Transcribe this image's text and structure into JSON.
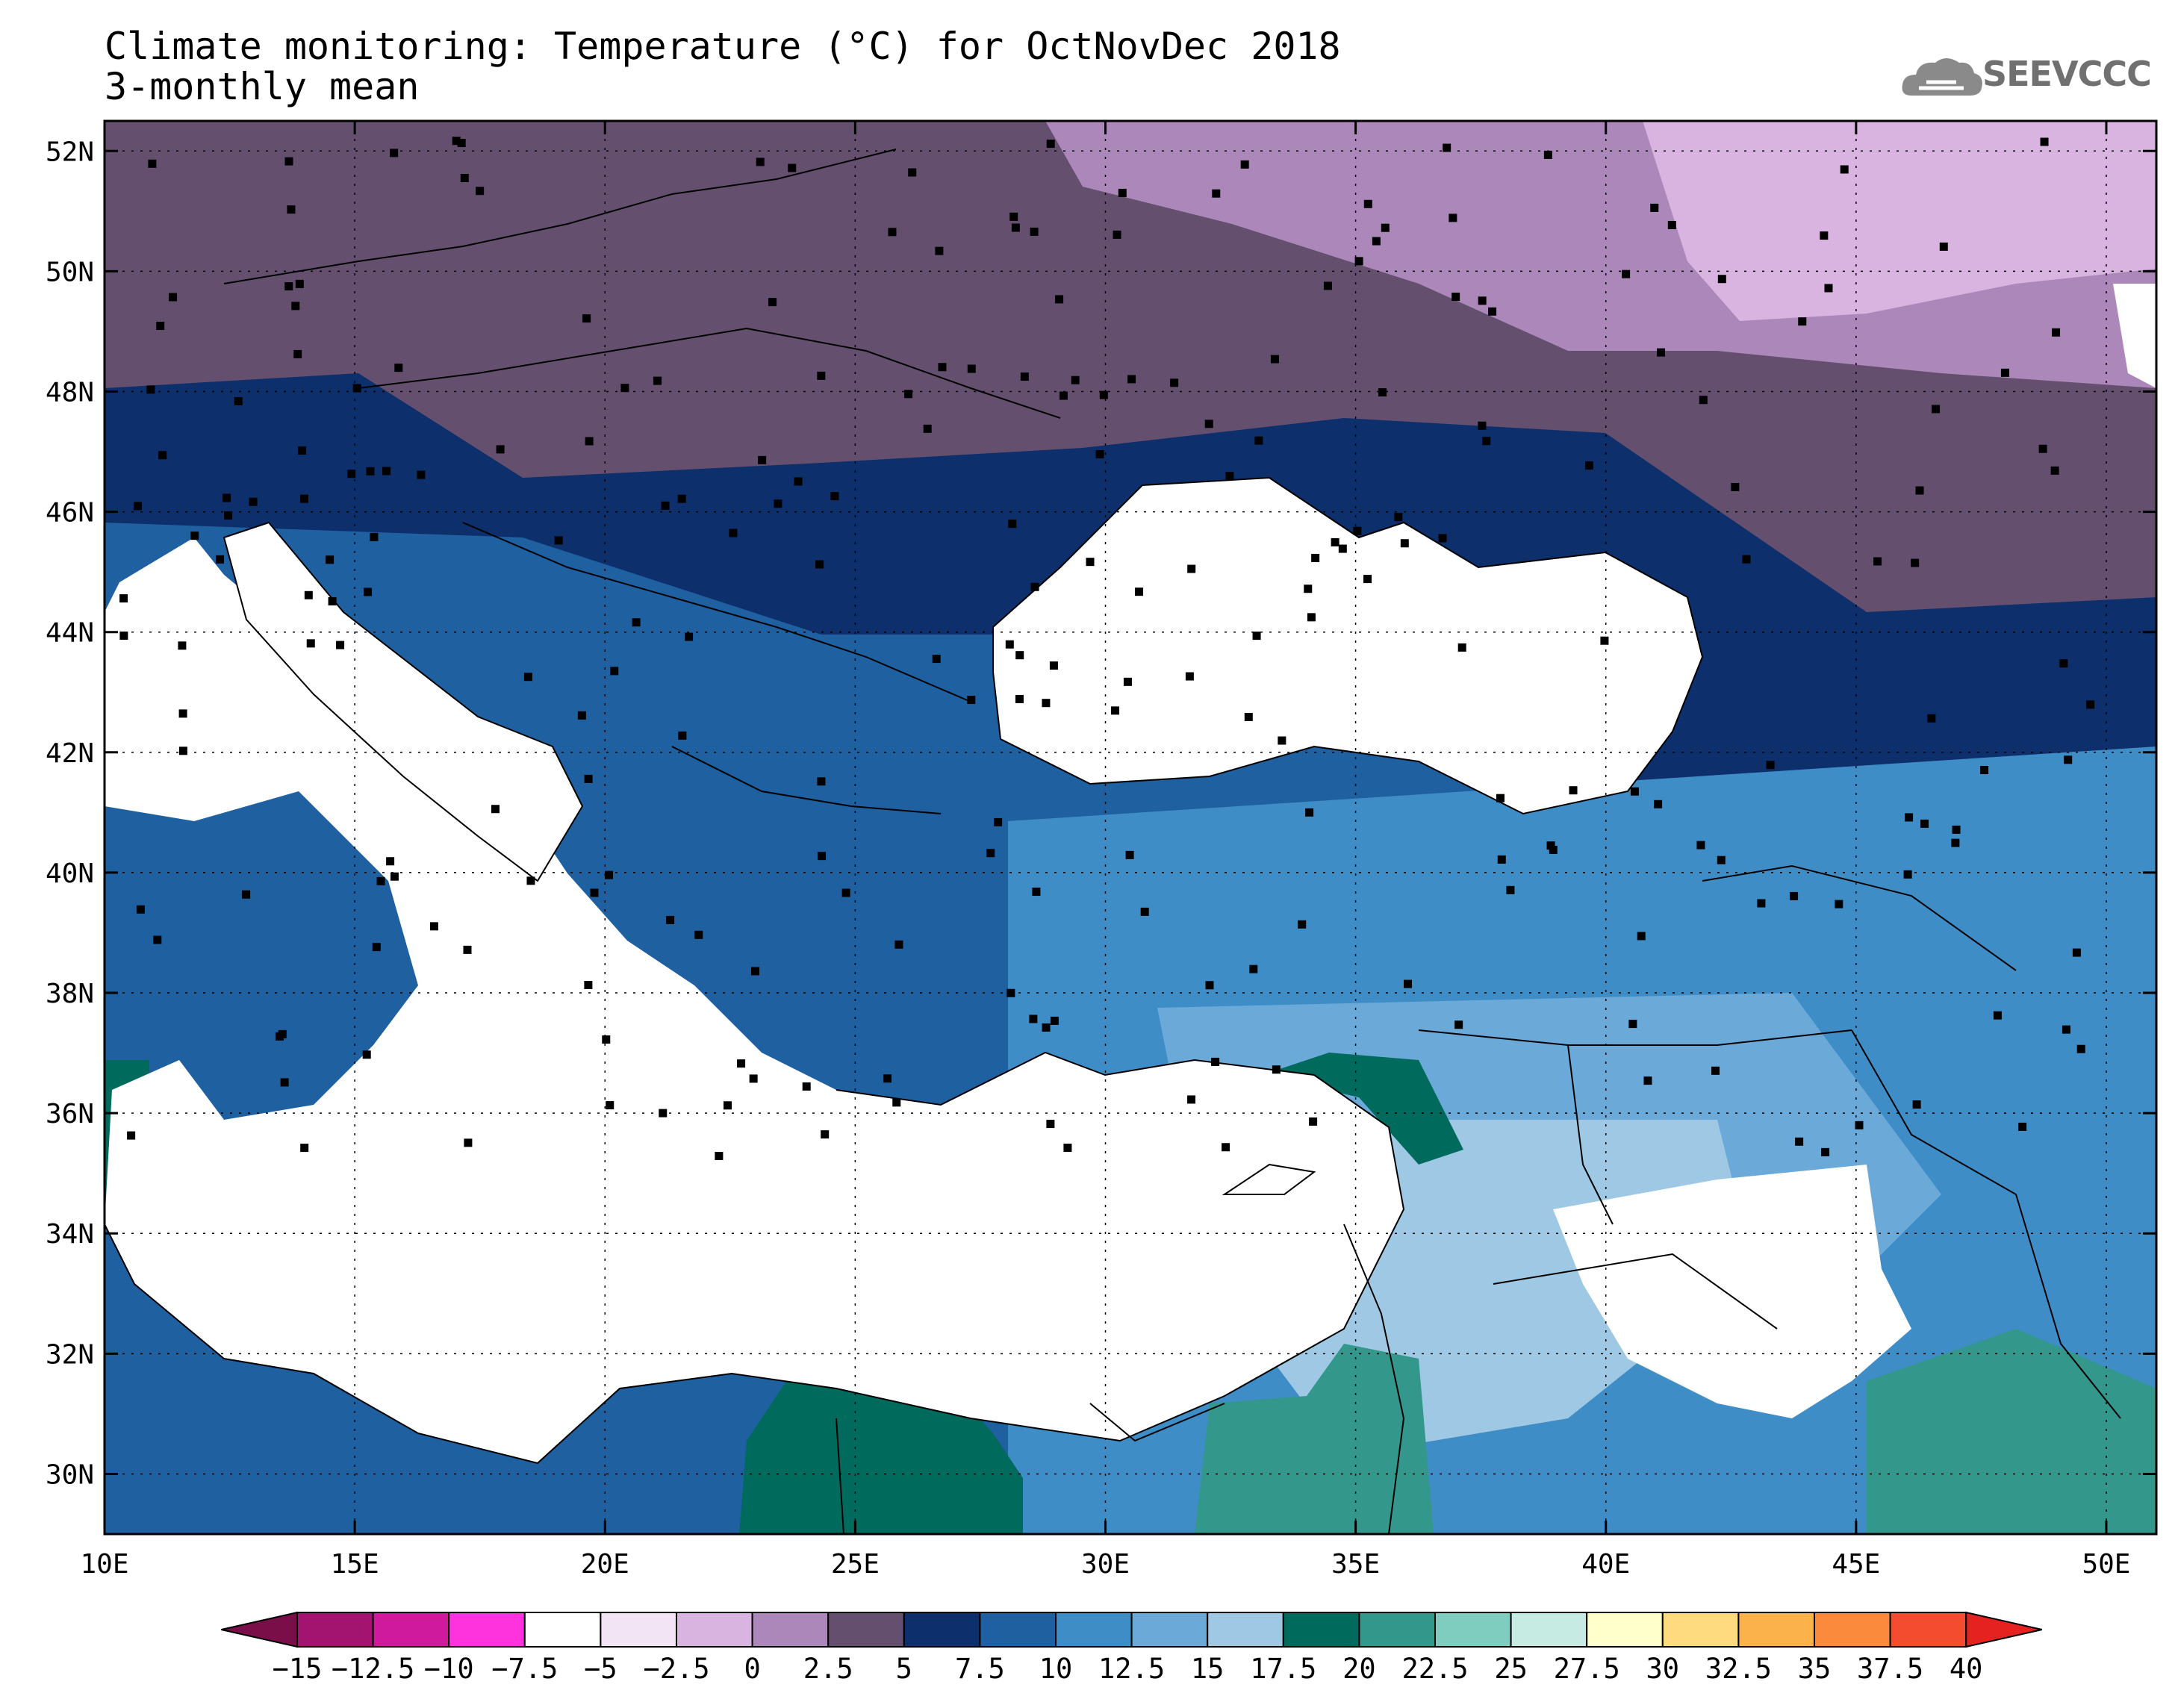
{
  "header": {
    "title": "Climate monitoring: Temperature (°C) for OctNovDec 2018",
    "subtitle": "3-monthly mean",
    "logo_text": "SEEVCCC"
  },
  "map": {
    "projection": "lat-lon",
    "lon_range": [
      10,
      51
    ],
    "lat_range": [
      29,
      52.5
    ],
    "lon_ticks": [
      "10E",
      "15E",
      "20E",
      "25E",
      "30E",
      "35E",
      "40E",
      "45E",
      "50E"
    ],
    "lat_ticks": [
      "30N",
      "32N",
      "34N",
      "36N",
      "38N",
      "40N",
      "42N",
      "44N",
      "46N",
      "48N",
      "50N",
      "52N"
    ],
    "grid": "dotted",
    "sea_color": "#ffffff"
  },
  "colorbar": {
    "labels": [
      "-15",
      "-12.5",
      "-10",
      "-7.5",
      "-5",
      "-2.5",
      "0",
      "2.5",
      "5",
      "7.5",
      "10",
      "12.5",
      "15",
      "17.5",
      "20",
      "22.5",
      "25",
      "27.5",
      "30",
      "32.5",
      "35",
      "37.5",
      "40"
    ],
    "colors": [
      "#7a0e48",
      "#a31470",
      "#d01a9e",
      "#ff33dd",
      "#ffffff",
      "#f2e4f5",
      "#dab4e0",
      "#ab87ba",
      "#654f6e",
      "#0d2f6b",
      "#1f60a0",
      "#3f8dc6",
      "#6aa9d8",
      "#9ec8e3",
      "#006b5d",
      "#34978b",
      "#7fcdbf",
      "#c6ebe2",
      "#ffffcc",
      "#ffdb80",
      "#fcb24a",
      "#fb8a3c",
      "#f44c2e",
      "#e62220"
    ]
  },
  "chart_data": {
    "type": "heatmap",
    "variable": "Temperature (°C)",
    "period": "OctNovDec 2018",
    "statistic": "3-monthly mean",
    "regions": [
      {
        "level": "2.5",
        "lon": [
          10,
          20
        ],
        "lat": [
          46.6,
          52.5
        ]
      },
      {
        "level": "2.5",
        "lon": [
          24,
          36
        ],
        "lat": [
          46.5,
          52.5
        ]
      },
      {
        "level": "0",
        "lon": [
          30,
          42
        ],
        "lat": [
          49,
          52.5
        ]
      },
      {
        "level": "-2.5",
        "lon": [
          41,
          51
        ],
        "lat": [
          49,
          52.5
        ]
      },
      {
        "level": "0",
        "lon": [
          43,
          51
        ],
        "lat": [
          47,
          49.5
        ]
      },
      {
        "level": "2.5",
        "lon": [
          41,
          51
        ],
        "lat": [
          44.5,
          47.5
        ]
      },
      {
        "level": "7.5",
        "lon": [
          10,
          30
        ],
        "lat": [
          42,
          46.5
        ]
      },
      {
        "level": "10",
        "lon": [
          10,
          30
        ],
        "lat": [
          39,
          43
        ]
      },
      {
        "level": "12.5",
        "lon": [
          26,
          51
        ],
        "lat": [
          36,
          42
        ]
      },
      {
        "level": "20",
        "lon": [
          34,
          36
        ],
        "lat": [
          29,
          32.5
        ]
      },
      {
        "level": "20",
        "lon": [
          22,
          29
        ],
        "lat": [
          29,
          31.2
        ]
      },
      {
        "level": "22.5",
        "lon": [
          45,
          51
        ],
        "lat": [
          29,
          32
        ]
      }
    ],
    "min_label": "-15",
    "max_label": "40",
    "interval": 2.5
  }
}
